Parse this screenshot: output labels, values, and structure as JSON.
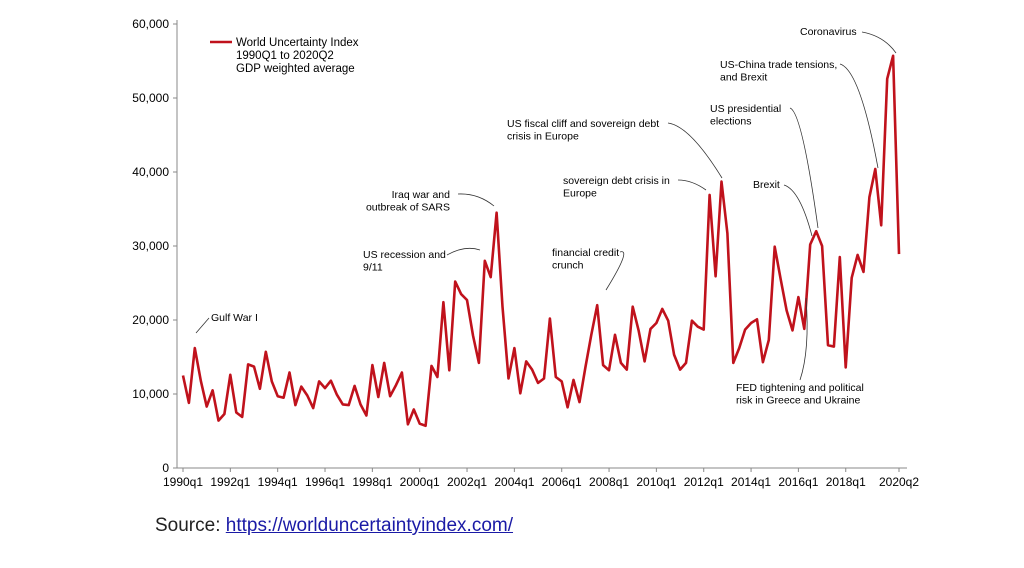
{
  "chart_data": {
    "type": "line",
    "title": "",
    "xlabel": "",
    "ylabel": "",
    "ylim": [
      0,
      60000
    ],
    "yticks": [
      0,
      10000,
      20000,
      30000,
      40000,
      50000,
      60000
    ],
    "ytick_labels": [
      "0",
      "10,000",
      "20,000",
      "30,000",
      "40,000",
      "50,000",
      "60,000"
    ],
    "x_start_year": 1990,
    "x_end_label": "2020q2",
    "xtick_labels": [
      "1990q1",
      "1992q1",
      "1994q1",
      "1996q1",
      "1998q1",
      "2000q1",
      "2002q1",
      "2004q1",
      "2006q1",
      "2008q1",
      "2010q1",
      "2012q1",
      "2014q1",
      "2016q1",
      "2018q1",
      "2020q2"
    ],
    "legend": {
      "lines": [
        "World Uncertainty Index",
        "1990Q1 to 2020Q2",
        "GDP weighted average"
      ],
      "position": "top-left",
      "color": "#c0121c"
    },
    "series": [
      {
        "name": "World Uncertainty Index",
        "color": "#c0121c",
        "values": [
          12500,
          8800,
          16200,
          11800,
          8300,
          10500,
          6400,
          7300,
          12600,
          7500,
          6900,
          14000,
          13700,
          10700,
          15700,
          11700,
          9700,
          9500,
          12900,
          8500,
          11000,
          9800,
          8100,
          11700,
          10800,
          11800,
          9900,
          8600,
          8500,
          11100,
          8600,
          7100,
          13900,
          9600,
          14200,
          9700,
          11200,
          12900,
          5900,
          7900,
          6000,
          5700,
          13800,
          12300,
          22400,
          13200,
          25200,
          23500,
          22700,
          17900,
          14200,
          28000,
          25800,
          34500,
          21800,
          12100,
          16200,
          10100,
          14400,
          13300,
          11500,
          12100,
          20200,
          12300,
          11700,
          8200,
          11900,
          8900,
          13600,
          18000,
          22000,
          13900,
          13200,
          18000,
          14200,
          13300,
          21800,
          18600,
          14400,
          18800,
          19600,
          21500,
          19900,
          15300,
          13300,
          14200,
          19900,
          19100,
          18700,
          36900,
          25900,
          38700,
          31700,
          14200,
          16200,
          18700,
          19600,
          20100,
          14300,
          17300,
          29900,
          25500,
          21300,
          18600,
          23100,
          18800,
          30200,
          32000,
          30000,
          16600,
          16400,
          28500,
          13600,
          25700,
          28800,
          26500,
          36600,
          40400,
          32800,
          52600,
          55700,
          28900
        ]
      }
    ],
    "annotations": [
      {
        "lines": [
          "Gulf War I"
        ],
        "index": 2
      },
      {
        "lines": [
          "US recession and",
          "9/11"
        ],
        "index": 51
      },
      {
        "lines": [
          "Iraq war and",
          "outbreak of SARS"
        ],
        "index": 53
      },
      {
        "lines": [
          "financial credit",
          "crunch"
        ],
        "index": 70
      },
      {
        "lines": [
          "US fiscal cliff and sovereign debt",
          "crisis in Europe"
        ],
        "index": 91
      },
      {
        "lines": [
          "sovereign debt crisis in",
          "Europe"
        ],
        "index": 89
      },
      {
        "lines": [
          "Brexit"
        ],
        "index": 106
      },
      {
        "lines": [
          "US presidential",
          "elections"
        ],
        "index": 107
      },
      {
        "lines": [
          "US-China trade tensions,",
          "and Brexit"
        ],
        "index": 117
      },
      {
        "lines": [
          "Coronavirus"
        ],
        "index": 120
      },
      {
        "lines": [
          "FED tightening  and political",
          "risk in Greece and Ukraine"
        ],
        "index": 104
      }
    ]
  },
  "source": {
    "label": "Source: ",
    "link_text": "https://worlduncertaintyindex.com/"
  }
}
